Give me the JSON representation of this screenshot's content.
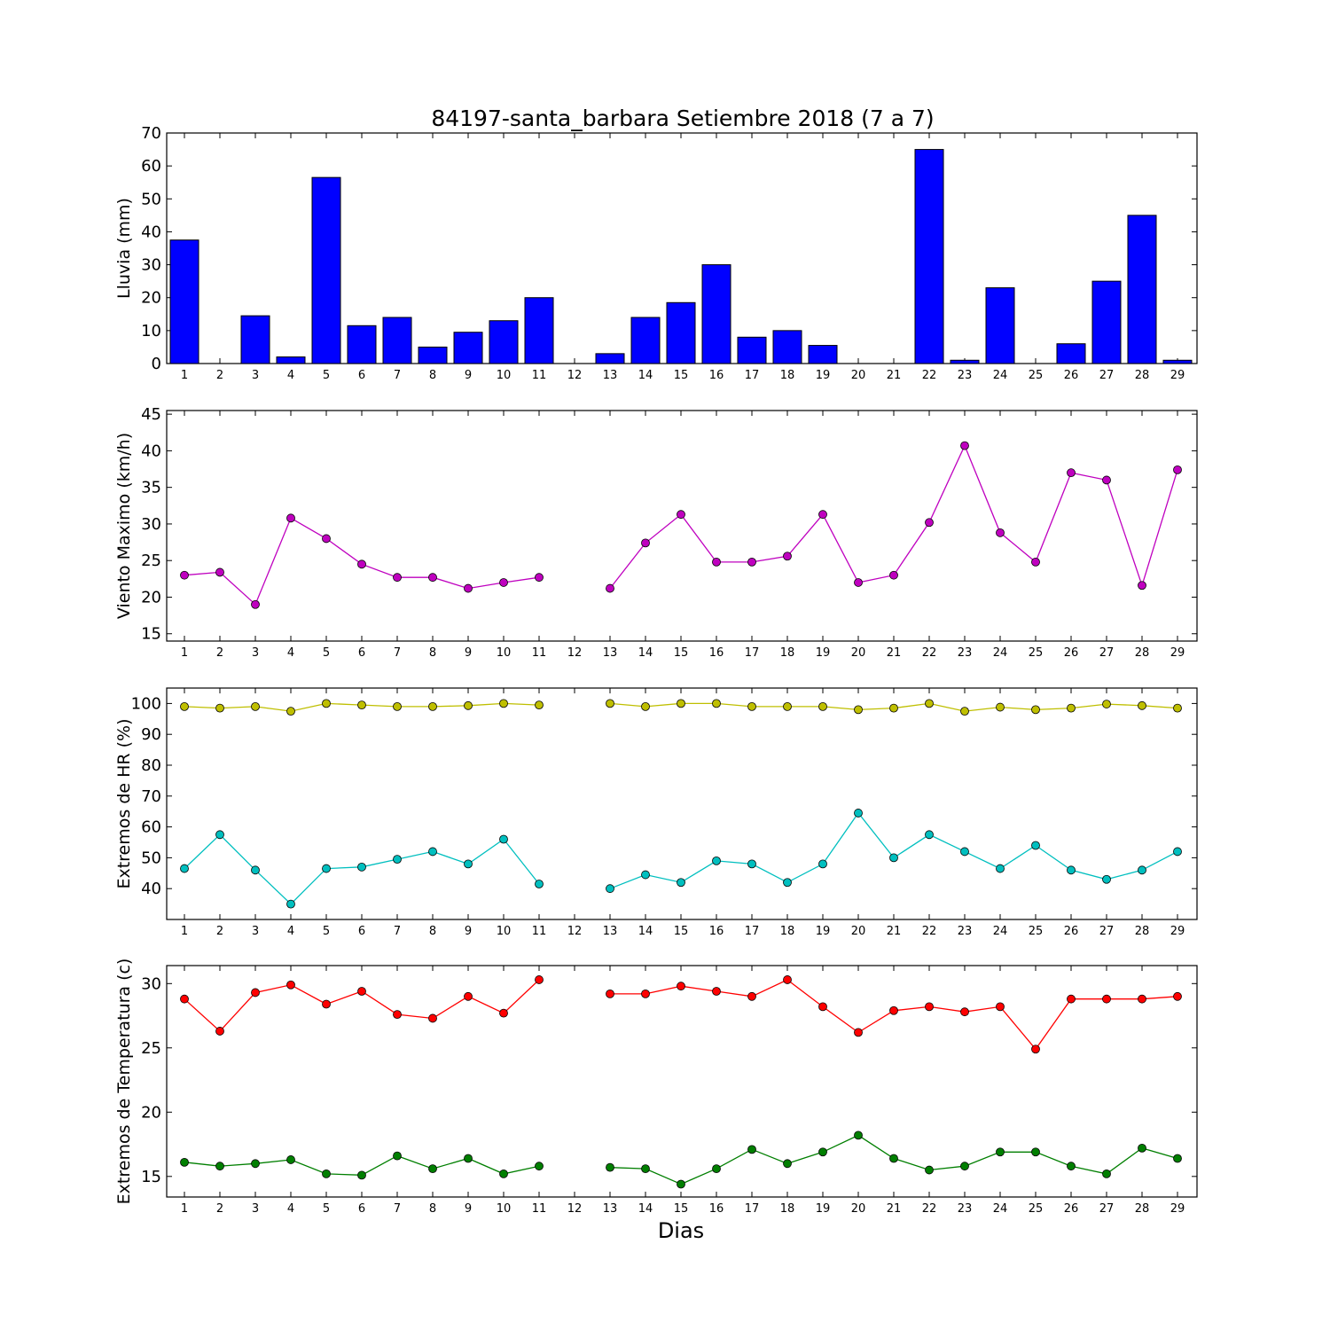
{
  "figure": {
    "title": "84197-santa_barbara Setiembre 2018  (7 a 7)",
    "xlabel": "Dias"
  },
  "chart_data": [
    {
      "type": "bar",
      "ylabel": "Lluvia (mm)",
      "categories": [
        1,
        2,
        3,
        4,
        5,
        6,
        7,
        8,
        9,
        10,
        11,
        12,
        13,
        14,
        15,
        16,
        17,
        18,
        19,
        20,
        21,
        22,
        23,
        24,
        25,
        26,
        27,
        28,
        29
      ],
      "series": [
        {
          "color": "#0000ff",
          "values": [
            37.5,
            0,
            14.5,
            2,
            56.5,
            11.5,
            14,
            5,
            9.5,
            13,
            20,
            null,
            3,
            14,
            18.5,
            30,
            8,
            10,
            5.5,
            0,
            0,
            65,
            1,
            23,
            0,
            6,
            25,
            45,
            1
          ]
        }
      ],
      "ylim": [
        0,
        70
      ],
      "yticks": [
        0,
        10,
        20,
        30,
        40,
        50,
        60,
        70
      ],
      "grid": false
    },
    {
      "type": "line",
      "ylabel": "Viento Maximo (km/h)",
      "categories": [
        1,
        2,
        3,
        4,
        5,
        6,
        7,
        8,
        9,
        10,
        11,
        12,
        13,
        14,
        15,
        16,
        17,
        18,
        19,
        20,
        21,
        22,
        23,
        24,
        25,
        26,
        27,
        28,
        29
      ],
      "series": [
        {
          "color": "#bf00bf",
          "values": [
            23,
            23.4,
            19,
            30.8,
            28,
            24.5,
            22.7,
            22.7,
            21.2,
            22,
            22.7,
            null,
            21.2,
            27.4,
            31.3,
            24.8,
            24.8,
            25.6,
            31.3,
            22,
            23,
            30.2,
            40.7,
            28.8,
            24.8,
            37,
            36,
            21.6,
            37.4
          ]
        }
      ],
      "ylim": [
        14,
        45.5
      ],
      "yticks": [
        15,
        20,
        25,
        30,
        35,
        40,
        45
      ],
      "grid": false
    },
    {
      "type": "line",
      "ylabel": "Extremos de HR (%)",
      "categories": [
        1,
        2,
        3,
        4,
        5,
        6,
        7,
        8,
        9,
        10,
        11,
        12,
        13,
        14,
        15,
        16,
        17,
        18,
        19,
        20,
        21,
        22,
        23,
        24,
        25,
        26,
        27,
        28,
        29
      ],
      "series": [
        {
          "color": "#bfbf00",
          "values": [
            99,
            98.5,
            99,
            97.5,
            100,
            99.5,
            99,
            99,
            99.3,
            100,
            99.5,
            null,
            100,
            99,
            100,
            100,
            99,
            99,
            99,
            98,
            98.5,
            100,
            97.5,
            98.8,
            98,
            98.5,
            99.8,
            99.3,
            98.5
          ]
        },
        {
          "color": "#00bfbf",
          "values": [
            46.5,
            57.5,
            46,
            35,
            46.5,
            47,
            49.5,
            52,
            48,
            56,
            41.5,
            null,
            40,
            44.5,
            42,
            49,
            48,
            42,
            48,
            64.5,
            50,
            57.5,
            52,
            46.5,
            54,
            46,
            43,
            46,
            52
          ]
        }
      ],
      "ylim": [
        30,
        105
      ],
      "yticks": [
        40,
        50,
        60,
        70,
        80,
        90,
        100
      ],
      "grid": false
    },
    {
      "type": "line",
      "ylabel": "Extremos de Temperatura (c)",
      "categories": [
        1,
        2,
        3,
        4,
        5,
        6,
        7,
        8,
        9,
        10,
        11,
        12,
        13,
        14,
        15,
        16,
        17,
        18,
        19,
        20,
        21,
        22,
        23,
        24,
        25,
        26,
        27,
        28,
        29
      ],
      "series": [
        {
          "color": "#ff0000",
          "values": [
            28.8,
            26.3,
            29.3,
            29.9,
            28.4,
            29.4,
            27.6,
            27.3,
            29,
            27.7,
            30.3,
            null,
            29.2,
            29.2,
            29.8,
            29.4,
            29,
            30.3,
            28.2,
            26.2,
            27.9,
            28.2,
            27.8,
            28.2,
            24.9,
            28.8,
            28.8,
            28.8,
            29
          ]
        },
        {
          "color": "#007f00",
          "values": [
            16.1,
            15.8,
            16,
            16.3,
            15.2,
            15.1,
            16.6,
            15.6,
            16.4,
            15.2,
            15.8,
            null,
            15.7,
            15.6,
            14.4,
            15.6,
            17.1,
            16,
            16.9,
            18.2,
            16.4,
            15.5,
            15.8,
            16.9,
            16.9,
            15.8,
            15.2,
            17.2,
            16.4
          ]
        }
      ],
      "ylim": [
        13.4,
        31.4
      ],
      "yticks": [
        15,
        20,
        25,
        30
      ],
      "grid": false
    }
  ]
}
